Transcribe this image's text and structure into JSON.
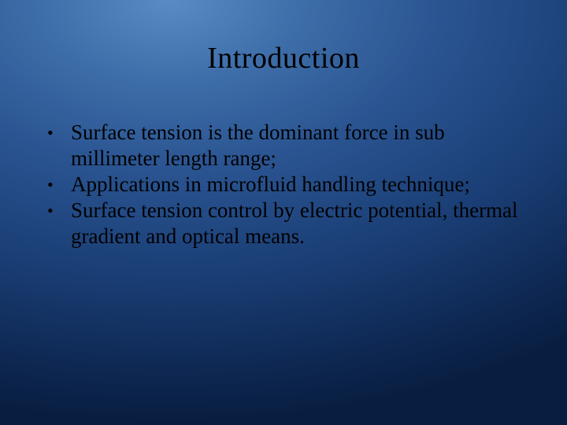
{
  "slide": {
    "title": "Introduction",
    "bullets": [
      "Surface tension is the dominant force in sub millimeter length range;",
      "Applications in microfluid handling technique;",
      "Surface tension control by electric potential, thermal gradient and optical means."
    ],
    "colors": {
      "text": "#000000",
      "bg_inner": "#5a8bc4",
      "bg_outer": "#081d3f"
    },
    "typography": {
      "title_fontsize": 38,
      "body_fontsize": 27,
      "font_family": "Times New Roman"
    }
  }
}
